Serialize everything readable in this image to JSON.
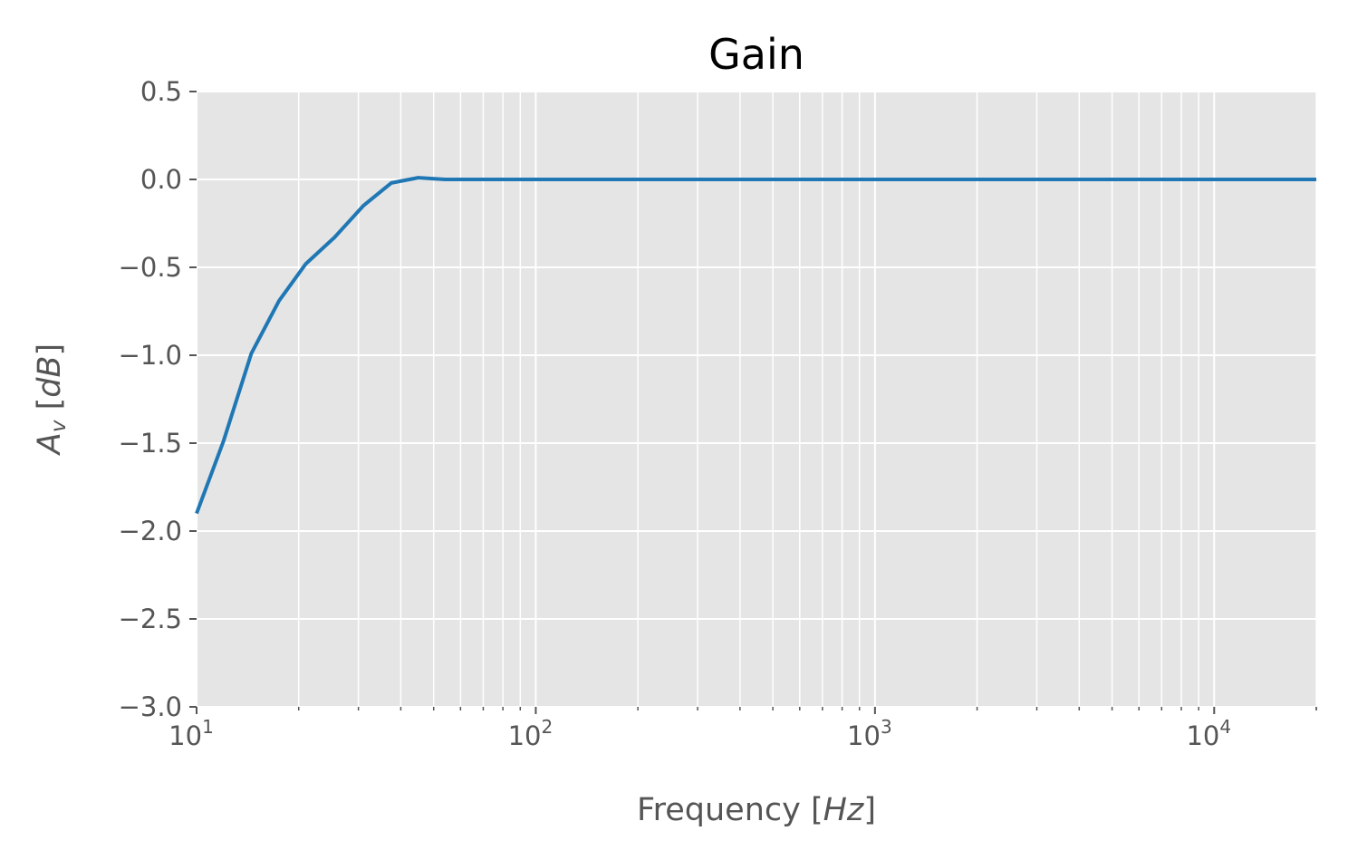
{
  "chart_data": {
    "type": "line",
    "title": "Gain",
    "xlabel": "Frequency [Hz]",
    "ylabel": "A_v [dB]",
    "xscale": "log",
    "xlim": [
      10,
      20000
    ],
    "ylim": [
      -3.0,
      0.5
    ],
    "grid": true,
    "colors": {
      "line": "#1f77b4",
      "background": "#e5e5e5",
      "grid": "#ffffff"
    },
    "yticks": [
      "0.5",
      "0.0",
      "−0.5",
      "−1.0",
      "−1.5",
      "−2.0",
      "−2.5",
      "−3.0"
    ],
    "yticks_values": [
      0.5,
      0.0,
      -0.5,
      -1.0,
      -1.5,
      -2.0,
      -2.5,
      -3.0
    ],
    "xticks": [
      {
        "value": 10,
        "base": "10",
        "exp": "1"
      },
      {
        "value": 100,
        "base": "10",
        "exp": "2"
      },
      {
        "value": 1000,
        "base": "10",
        "exp": "3"
      },
      {
        "value": 10000,
        "base": "10",
        "exp": "4"
      }
    ],
    "series": [
      {
        "x": [
          10,
          12,
          14.5,
          17.5,
          21,
          25.5,
          31,
          37.5,
          45,
          54,
          65,
          80,
          100,
          200,
          500,
          1000,
          2000,
          5000,
          10000,
          20000
        ],
        "y": [
          -1.9,
          -1.49,
          -0.99,
          -0.69,
          -0.48,
          -0.33,
          -0.15,
          -0.02,
          0.01,
          0.0,
          0.0,
          0.0,
          0.0,
          0.0,
          0.0,
          0.0,
          0.0,
          0.0,
          0.0,
          0.0
        ]
      }
    ]
  }
}
